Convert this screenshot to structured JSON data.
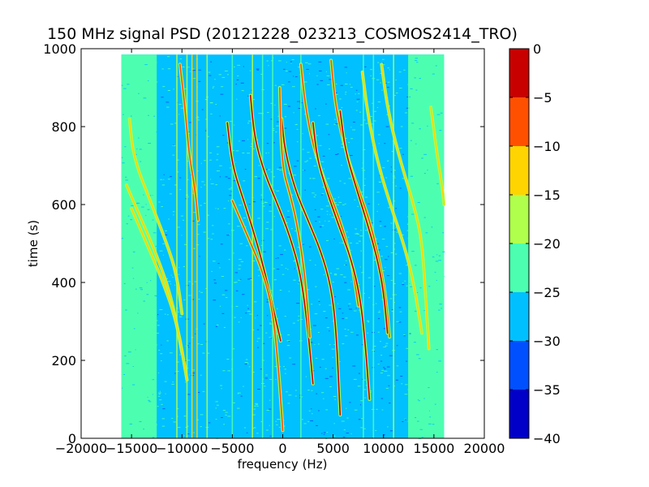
{
  "chart_data": {
    "type": "heatmap",
    "title": "150 MHz signal PSD (20121228_023213_COSMOS2414_TRO)",
    "xlabel": "frequency (Hz)",
    "ylabel": "time (s)",
    "xlim": [
      -20000,
      20000
    ],
    "ylim": [
      0,
      1000
    ],
    "x_ticks": [
      -20000,
      -15000,
      -10000,
      -5000,
      0,
      5000,
      10000,
      15000,
      20000
    ],
    "x_tick_labels": [
      "−20000",
      "−15000",
      "−10000",
      "−5000",
      "0",
      "5000",
      "10000",
      "15000",
      "20000"
    ],
    "y_ticks": [
      0,
      200,
      400,
      600,
      800,
      1000
    ],
    "y_tick_labels": [
      "0",
      "200",
      "400",
      "600",
      "800",
      "1000"
    ],
    "data_extent": {
      "x": [
        -16000,
        16000
      ],
      "y": [
        0,
        985
      ]
    },
    "colorbar": {
      "range": [
        -40,
        0
      ],
      "ticks": [
        0,
        -5,
        -10,
        -15,
        -20,
        -25,
        -30,
        -35,
        -40
      ],
      "tick_labels": [
        "0",
        "−5",
        "−10",
        "−15",
        "−20",
        "−25",
        "−30",
        "−35",
        "−40"
      ],
      "bands": [
        {
          "from": -40,
          "to": -35,
          "color": "#0000c8"
        },
        {
          "from": -35,
          "to": -30,
          "color": "#0050ff"
        },
        {
          "from": -30,
          "to": -25,
          "color": "#00c0ff"
        },
        {
          "from": -25,
          "to": -20,
          "color": "#4cffb0"
        },
        {
          "from": -20,
          "to": -15,
          "color": "#b0ff4c"
        },
        {
          "from": -15,
          "to": -10,
          "color": "#ffd400"
        },
        {
          "from": -10,
          "to": -5,
          "color": "#ff5000"
        },
        {
          "from": -5,
          "to": 0,
          "color": "#c80000"
        }
      ]
    },
    "background_level": {
      "center": -28,
      "edge": -23,
      "edge_zones_hz": [
        [
          -16000,
          -12500
        ],
        [
          12500,
          16000
        ]
      ]
    },
    "vertical_lines": [
      {
        "freq": -13000,
        "level": -22
      },
      {
        "freq": -10500,
        "level": -18
      },
      {
        "freq": -9500,
        "level": -18
      },
      {
        "freq": -9000,
        "level": -12
      },
      {
        "freq": -8500,
        "level": -12
      },
      {
        "freq": -7500,
        "level": -18
      },
      {
        "freq": -5000,
        "level": -22
      },
      {
        "freq": -3000,
        "level": -18
      },
      {
        "freq": -2000,
        "level": -22
      },
      {
        "freq": -1000,
        "level": -22
      },
      {
        "freq": 1800,
        "level": -22
      },
      {
        "freq": 8000,
        "level": -22
      },
      {
        "freq": 9000,
        "level": -22
      },
      {
        "freq": 11000,
        "level": -18
      },
      {
        "freq": 12500,
        "level": -22
      }
    ],
    "doppler_traces": [
      {
        "name_visible": false,
        "peak": -15,
        "points": [
          [
            -15500,
            650
          ],
          [
            -14000,
            560
          ],
          [
            -12500,
            470
          ],
          [
            -11000,
            360
          ],
          [
            -10000,
            220
          ]
        ]
      },
      {
        "name_visible": false,
        "peak": -15,
        "points": [
          [
            -15000,
            590
          ],
          [
            -13500,
            500
          ],
          [
            -12000,
            410
          ],
          [
            -10500,
            300
          ],
          [
            -9500,
            150
          ]
        ]
      },
      {
        "name_visible": false,
        "peak": -15,
        "points": [
          [
            -15200,
            820
          ],
          [
            -14800,
            720
          ],
          [
            -13000,
            600
          ],
          [
            -11500,
            500
          ],
          [
            -10500,
            420
          ],
          [
            -10000,
            320
          ]
        ]
      },
      {
        "name_visible": false,
        "peak": -10,
        "points": [
          [
            -10200,
            960
          ],
          [
            -9700,
            850
          ],
          [
            -9300,
            730
          ],
          [
            -8700,
            640
          ],
          [
            -8400,
            560
          ]
        ]
      },
      {
        "name_visible": false,
        "peak": -5,
        "points": [
          [
            -5500,
            810
          ],
          [
            -5000,
            700
          ],
          [
            -4000,
            620
          ],
          [
            -3000,
            540
          ],
          [
            -2000,
            450
          ],
          [
            -1000,
            340
          ],
          [
            -200,
            250
          ]
        ]
      },
      {
        "name_visible": false,
        "peak": -10,
        "points": [
          [
            -5000,
            610
          ],
          [
            -3500,
            520
          ],
          [
            -2000,
            430
          ],
          [
            -1000,
            330
          ],
          [
            -500,
            200
          ],
          [
            -200,
            100
          ],
          [
            0,
            20
          ]
        ]
      },
      {
        "name_visible": false,
        "peak": -5,
        "points": [
          [
            -3200,
            880
          ],
          [
            -2800,
            770
          ],
          [
            -1800,
            680
          ],
          [
            -500,
            600
          ],
          [
            700,
            520
          ],
          [
            1800,
            420
          ],
          [
            2500,
            280
          ],
          [
            3000,
            140
          ]
        ]
      },
      {
        "name_visible": false,
        "peak": -5,
        "points": [
          [
            -100,
            820
          ],
          [
            200,
            740
          ],
          [
            1200,
            640
          ],
          [
            2500,
            560
          ],
          [
            3800,
            480
          ],
          [
            4800,
            390
          ],
          [
            5300,
            280
          ],
          [
            5700,
            60
          ]
        ]
      },
      {
        "name_visible": false,
        "peak": -10,
        "points": [
          [
            -300,
            900
          ],
          [
            -100,
            700
          ],
          [
            800,
            620
          ],
          [
            1500,
            540
          ],
          [
            2200,
            420
          ],
          [
            2700,
            260
          ]
        ]
      },
      {
        "name_visible": false,
        "peak": -10,
        "points": [
          [
            1800,
            960
          ],
          [
            2200,
            860
          ],
          [
            3000,
            750
          ],
          [
            4300,
            650
          ],
          [
            5700,
            560
          ],
          [
            6800,
            460
          ],
          [
            7500,
            340
          ]
        ]
      },
      {
        "name_visible": false,
        "peak": -5,
        "points": [
          [
            3000,
            810
          ],
          [
            3400,
            720
          ],
          [
            4300,
            640
          ],
          [
            5500,
            550
          ],
          [
            6800,
            460
          ],
          [
            7700,
            360
          ],
          [
            8200,
            240
          ],
          [
            8600,
            100
          ]
        ]
      },
      {
        "name_visible": false,
        "peak": -10,
        "points": [
          [
            4800,
            970
          ],
          [
            5200,
            860
          ],
          [
            6000,
            760
          ],
          [
            7200,
            660
          ],
          [
            8500,
            570
          ],
          [
            9500,
            470
          ],
          [
            10200,
            370
          ],
          [
            10600,
            260
          ]
        ]
      },
      {
        "name_visible": false,
        "peak": -5,
        "points": [
          [
            5700,
            840
          ],
          [
            6200,
            740
          ],
          [
            7200,
            650
          ],
          [
            8300,
            560
          ],
          [
            9300,
            470
          ],
          [
            10000,
            380
          ],
          [
            10400,
            270
          ]
        ]
      },
      {
        "name_visible": false,
        "peak": -15,
        "points": [
          [
            7900,
            940
          ],
          [
            8500,
            820
          ],
          [
            9500,
            700
          ],
          [
            10800,
            590
          ],
          [
            12000,
            500
          ],
          [
            13000,
            400
          ],
          [
            13800,
            270
          ]
        ]
      },
      {
        "name_visible": false,
        "peak": -15,
        "points": [
          [
            9800,
            960
          ],
          [
            10500,
            830
          ],
          [
            11800,
            700
          ],
          [
            13000,
            600
          ],
          [
            13800,
            510
          ],
          [
            14200,
            360
          ],
          [
            14500,
            230
          ]
        ]
      },
      {
        "name_visible": false,
        "peak": -15,
        "points": [
          [
            14700,
            850
          ],
          [
            15300,
            730
          ],
          [
            15800,
            650
          ],
          [
            16000,
            600
          ]
        ]
      }
    ]
  }
}
